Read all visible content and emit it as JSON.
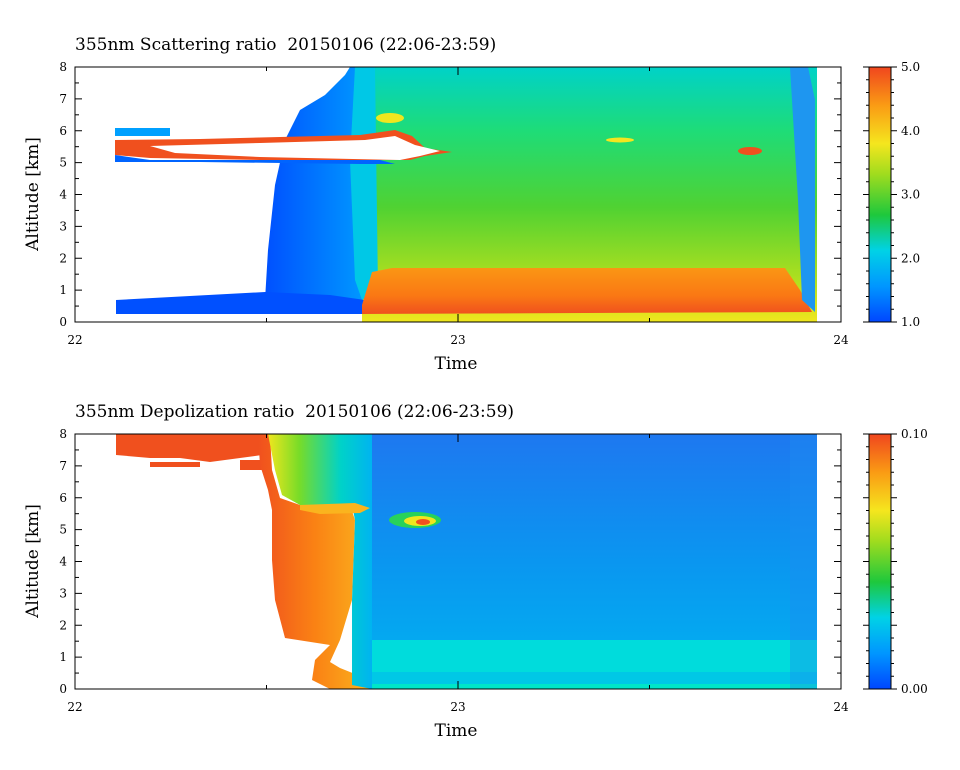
{
  "chart_data": [
    {
      "type": "heatmap",
      "title": "355nm Scattering ratio  20150106 (22:06-23:59)",
      "xlabel": "Time",
      "ylabel": "Altitude [km]",
      "xlim": [
        22,
        24
      ],
      "ylim": [
        0,
        8
      ],
      "x_ticks": [
        22,
        23,
        24
      ],
      "y_ticks": [
        0,
        1,
        2,
        3,
        4,
        5,
        6,
        7,
        8
      ],
      "colorbar": {
        "range": [
          1.0,
          5.0
        ],
        "ticks": [
          "1.0",
          "2.0",
          "3.0",
          "4.0",
          "5.0"
        ]
      },
      "data_period": [
        22.1,
        23.93
      ],
      "cloud_layer_km": [
        5.0,
        5.8
      ],
      "boundary_layer_km": [
        0.3,
        1.6
      ]
    },
    {
      "type": "heatmap",
      "title": "355nm Depolization ratio  20150106 (22:06-23:59)",
      "xlabel": "Time",
      "ylabel": "Altitude [km]",
      "xlim": [
        22,
        24
      ],
      "ylim": [
        0,
        8
      ],
      "x_ticks": [
        22,
        23,
        24
      ],
      "y_ticks": [
        0,
        1,
        2,
        3,
        4,
        5,
        6,
        7,
        8
      ],
      "colorbar": {
        "range": [
          0.0,
          0.1
        ],
        "ticks": [
          "0.00",
          "0.10"
        ]
      },
      "data_period": [
        22.1,
        23.93
      ],
      "cloud_layer_km": [
        5.0,
        5.8
      ],
      "boundary_layer_km": [
        0.0,
        1.5
      ]
    }
  ],
  "colors": {
    "scale": [
      "#0050ff",
      "#0096ff",
      "#00d2e6",
      "#2ad24a",
      "#a6e020",
      "#f5e61e",
      "#fa9b14",
      "#f0501e"
    ]
  }
}
